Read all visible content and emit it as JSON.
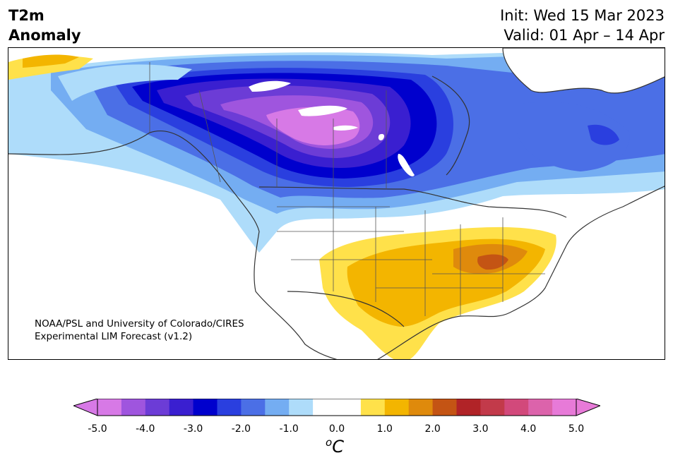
{
  "title": {
    "variable_line1": "T2m",
    "variable_line2": "Anomaly",
    "init": "Init: Wed 15 Mar 2023",
    "valid": "Valid: 01 Apr – 14 Apr"
  },
  "credit": {
    "line1": "NOAA/PSL and University of Colorado/CIRES",
    "line2": "Experimental LIM Forecast (v1.2)"
  },
  "colorbar": {
    "unit_base": "C",
    "unit_super": "o",
    "ticks": [
      "-5.0",
      "-4.0",
      "-3.0",
      "-2.0",
      "-1.0",
      "0.0",
      "1.0",
      "2.0",
      "3.0",
      "4.0",
      "5.0"
    ],
    "colors": [
      "#d779e6",
      "#9f55de",
      "#6c3cd6",
      "#3a1fd0",
      "#0000cd",
      "#2a3fdf",
      "#4b6fe6",
      "#74adf2",
      "#aedcfa",
      "#ffffff",
      "#ffffff",
      "#ffe14a",
      "#f3b500",
      "#df8a0c",
      "#c45414",
      "#b12327",
      "#c23a4a",
      "#d2497b",
      "#dc63ab",
      "#e77ad8"
    ],
    "under_color": "#d779e6",
    "over_color": "#e77ad8"
  },
  "palette": {
    "cold_5": "#d779e6",
    "cold_4": "#9f55de",
    "cold_3": "#6c3cd6",
    "cold_3b": "#3a1fd0",
    "cold_2": "#0000cd",
    "cold_2b": "#2a3fdf",
    "cold_1": "#4b6fe6",
    "cold_1b": "#74adf2",
    "cold_05": "#aedcfa",
    "warm_05": "#ffe14a",
    "warm_1": "#f3b500",
    "warm_15": "#df8a0c",
    "warm_2": "#c45414"
  }
}
